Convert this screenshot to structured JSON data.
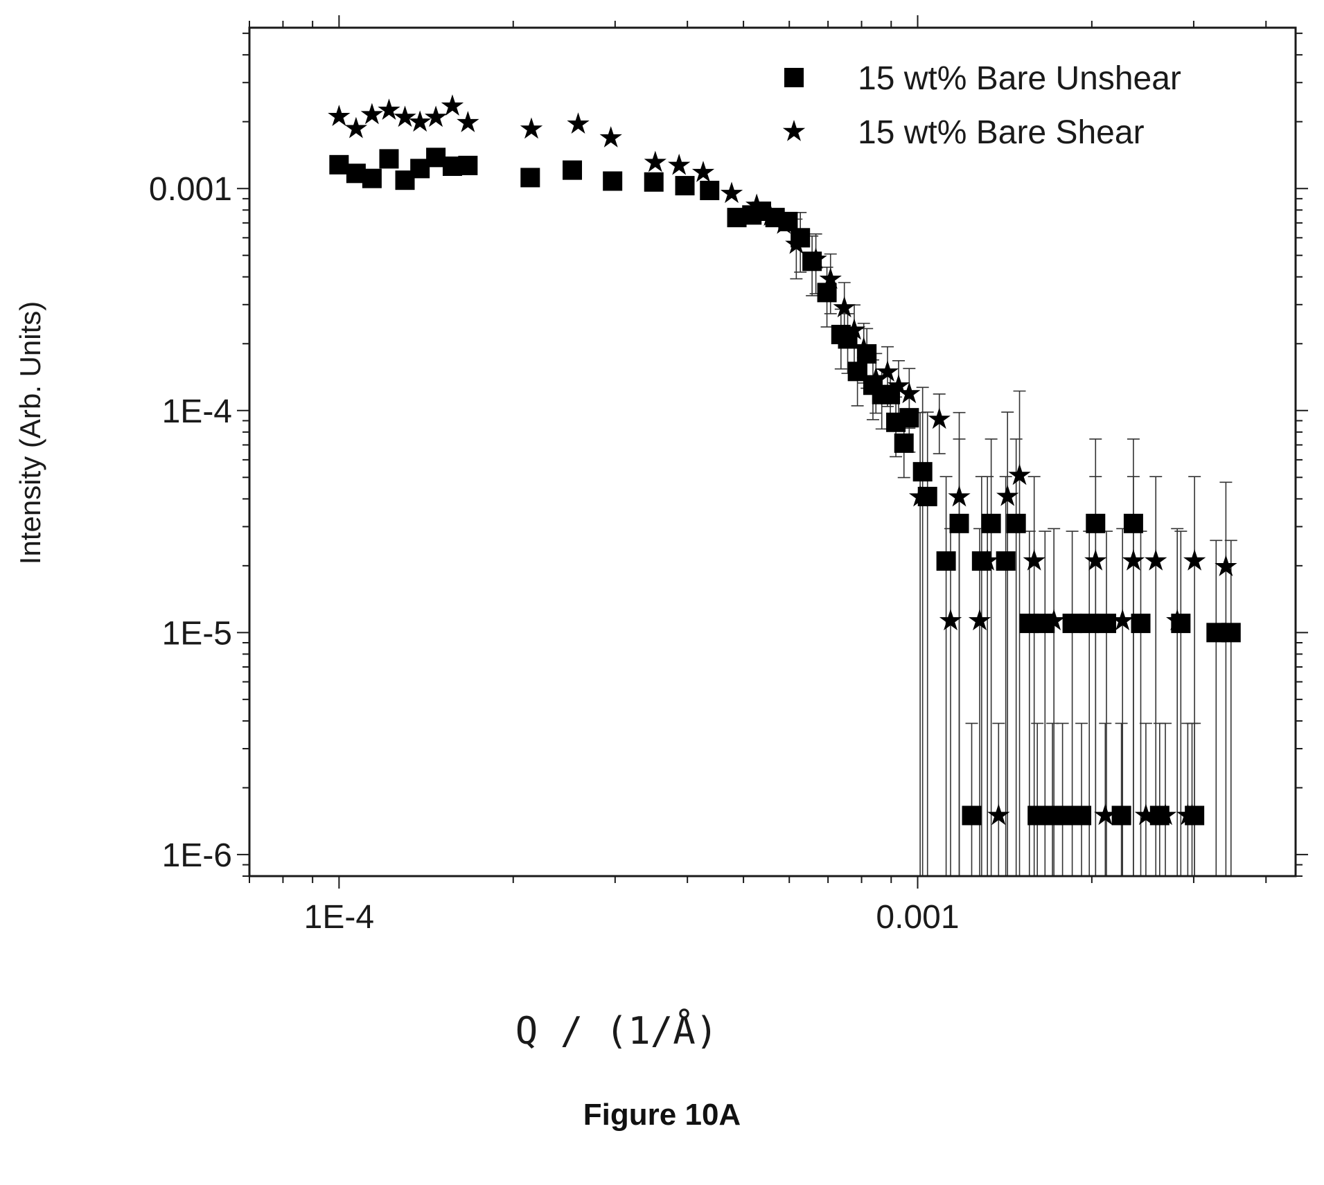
{
  "figure_caption": "Figure 10A",
  "chart_data": {
    "type": "scatter",
    "xlabel": "Q / (1/Å)",
    "ylabel": "Intensity (Arb. Units)",
    "x_scale": "log",
    "y_scale": "log",
    "xlim": [
      7e-05,
      0.0045
    ],
    "ylim": [
      8e-07,
      0.0053
    ],
    "x_ticks": [
      {
        "value": 0.0001,
        "label": "1E-4"
      },
      {
        "value": 0.001,
        "label": "0.001"
      }
    ],
    "y_ticks": [
      {
        "value": 0.001,
        "label": "0.001"
      },
      {
        "value": 0.0001,
        "label": "1E-4"
      },
      {
        "value": 1e-05,
        "label": "1E-5"
      },
      {
        "value": 1e-06,
        "label": "1E-6"
      }
    ],
    "legend_position": "top-right",
    "grid": false,
    "error_bars": true,
    "series": [
      {
        "name": "15 wt% Bare Unshear",
        "marker": "square",
        "color": "#000000",
        "points": [
          [
            0.0001,
            0.00128
          ],
          [
            0.000107,
            0.00117
          ],
          [
            0.000114,
            0.00111
          ],
          [
            0.000122,
            0.00136
          ],
          [
            0.00013,
            0.00109
          ],
          [
            0.000138,
            0.00123
          ],
          [
            0.000147,
            0.00138
          ],
          [
            0.000157,
            0.00126
          ],
          [
            0.000167,
            0.00127
          ],
          [
            0.000214,
            0.00112
          ],
          [
            0.000253,
            0.00121
          ],
          [
            0.000297,
            0.00108
          ],
          [
            0.00035,
            0.00107
          ],
          [
            0.000396,
            0.00103
          ],
          [
            0.000437,
            0.00098
          ],
          [
            0.000487,
            0.00074
          ],
          [
            0.000517,
            0.00076
          ],
          [
            0.000537,
            0.00079
          ],
          [
            0.000567,
            0.00074
          ],
          [
            0.000597,
            0.00071
          ],
          [
            0.000627,
            0.0006
          ],
          [
            0.000657,
            0.00047
          ],
          [
            0.000697,
            0.00034
          ],
          [
            0.000737,
            0.00022
          ],
          [
            0.000757,
            0.00021
          ],
          [
            0.000787,
            0.00015
          ],
          [
            0.000817,
            0.00018
          ],
          [
            0.000837,
            0.00013
          ],
          [
            0.000867,
            0.000118
          ],
          [
            0.000897,
            0.000118
          ],
          [
            0.000917,
            8.85e-05
          ],
          [
            0.000947,
            7.13e-05
          ],
          [
            0.000967,
            9.28e-05
          ],
          [
            0.00102,
            5.3e-05
          ],
          [
            0.00104,
            4.1e-05
          ],
          [
            0.00112,
            2.1e-05
          ],
          [
            0.00118,
            3.1e-05
          ],
          [
            0.00124,
            1.5e-06
          ],
          [
            0.00129,
            2.1e-05
          ],
          [
            0.00134,
            3.1e-05
          ],
          [
            0.00142,
            2.1e-05
          ],
          [
            0.00148,
            3.1e-05
          ],
          [
            0.00156,
            1.1e-05
          ],
          [
            0.00161,
            1.5e-06
          ],
          [
            0.00166,
            1.1e-05
          ],
          [
            0.00171,
            1.5e-06
          ],
          [
            0.00178,
            1.5e-06
          ],
          [
            0.00185,
            1.1e-05
          ],
          [
            0.00192,
            1.5e-06
          ],
          [
            0.00198,
            1.1e-05
          ],
          [
            0.00203,
            3.1e-05
          ],
          [
            0.00212,
            1.1e-05
          ],
          [
            0.00225,
            1.5e-06
          ],
          [
            0.00236,
            3.1e-05
          ],
          [
            0.00243,
            1.1e-05
          ],
          [
            0.00262,
            1.5e-06
          ],
          [
            0.00285,
            1.1e-05
          ],
          [
            0.00301,
            1.5e-06
          ],
          [
            0.00328,
            1e-05
          ],
          [
            0.00348,
            1e-05
          ]
        ]
      },
      {
        "name": "15 wt% Bare Shear",
        "marker": "star",
        "color": "#000000",
        "points": [
          [
            0.0001,
            0.00211
          ],
          [
            0.000107,
            0.00186
          ],
          [
            0.000114,
            0.00215
          ],
          [
            0.000122,
            0.00225
          ],
          [
            0.00013,
            0.00209
          ],
          [
            0.000138,
            0.00199
          ],
          [
            0.000147,
            0.00209
          ],
          [
            0.000157,
            0.00235
          ],
          [
            0.000167,
            0.00198
          ],
          [
            0.000215,
            0.00185
          ],
          [
            0.000259,
            0.00195
          ],
          [
            0.000295,
            0.00169
          ],
          [
            0.000352,
            0.00131
          ],
          [
            0.000387,
            0.00127
          ],
          [
            0.000426,
            0.00118
          ],
          [
            0.000477,
            0.00095
          ],
          [
            0.000527,
            0.00084
          ],
          [
            0.000557,
            0.00075
          ],
          [
            0.000587,
            0.00069
          ],
          [
            0.000617,
            0.00056
          ],
          [
            0.000667,
            0.00048
          ],
          [
            0.000707,
            0.00039
          ],
          [
            0.000747,
            0.00029
          ],
          [
            0.000777,
            0.00023
          ],
          [
            0.000807,
            0.00019
          ],
          [
            0.000847,
            0.000139
          ],
          [
            0.000887,
            0.000149
          ],
          [
            0.000927,
            0.000129
          ],
          [
            0.000967,
            0.000119
          ],
          [
            0.00101,
            4.08e-05
          ],
          [
            0.00109,
            9.13e-05
          ],
          [
            0.00114,
            1.13e-05
          ],
          [
            0.00118,
            4.08e-05
          ],
          [
            0.00128,
            1.13e-05
          ],
          [
            0.00132,
            2.1e-05
          ],
          [
            0.00138,
            1.5e-06
          ],
          [
            0.00143,
            4.1e-05
          ],
          [
            0.0015,
            5.1e-05
          ],
          [
            0.00159,
            2.1e-05
          ],
          [
            0.00172,
            1.13e-05
          ],
          [
            0.00203,
            2.1e-05
          ],
          [
            0.00211,
            1.5e-06
          ],
          [
            0.00226,
            1.13e-05
          ],
          [
            0.00236,
            2.1e-05
          ],
          [
            0.00248,
            1.5e-06
          ],
          [
            0.00258,
            2.1e-05
          ],
          [
            0.00268,
            1.5e-06
          ],
          [
            0.00281,
            1.13e-05
          ],
          [
            0.00293,
            1.5e-06
          ],
          [
            0.00298,
            1.5e-06
          ],
          [
            0.00301,
            2.1e-05
          ],
          [
            0.00341,
            1.98e-05
          ]
        ]
      }
    ]
  }
}
